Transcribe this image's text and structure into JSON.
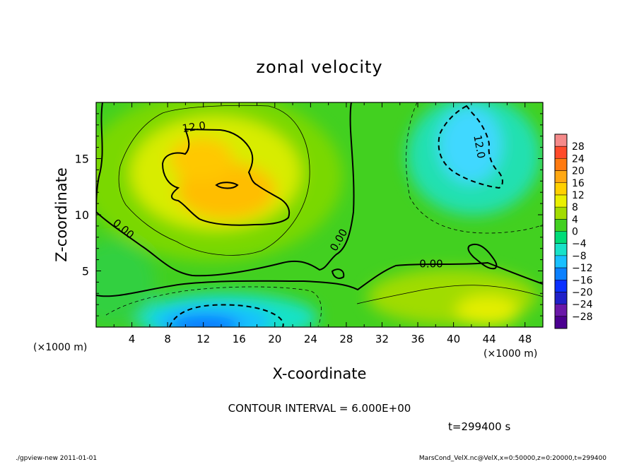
{
  "chart_data": {
    "type": "heatmap",
    "title": "zonal velocity",
    "xlabel": "X-coordinate",
    "ylabel": "Z-coordinate",
    "x_unit_label": "(×1000 m)",
    "y_unit_label": "(×1000 m)",
    "xlim": [
      0,
      50
    ],
    "ylim": [
      0,
      20
    ],
    "x_ticks": [
      4,
      8,
      12,
      16,
      20,
      24,
      28,
      32,
      36,
      40,
      44,
      48
    ],
    "y_ticks": [
      5,
      10,
      15
    ],
    "contour_interval_text": "CONTOUR INTERVAL = 6.000E+00",
    "time_text": "t=299400 s",
    "contour_labels": [
      {
        "text": "12.0",
        "x": 11.0,
        "z": 17.5
      },
      {
        "text": "12.0",
        "x": 42.5,
        "z": 16.0
      },
      {
        "text": "0.00",
        "x": 2.8,
        "z": 8.5
      },
      {
        "text": "0.00",
        "x": 27.5,
        "z": 7.6
      },
      {
        "text": "0.00",
        "x": 37.5,
        "z": 5.3
      }
    ],
    "colorbar": {
      "levels": [
        "28",
        "24",
        "20",
        "16",
        "12",
        "8",
        "4",
        "0",
        "−4",
        "−8",
        "−12",
        "−16",
        "−20",
        "−24",
        "−28"
      ],
      "colors": [
        "#f58a8a",
        "#ff4a2a",
        "#ff7a10",
        "#ffa812",
        "#ffd000",
        "#eaf000",
        "#a2dc00",
        "#42d020",
        "#00dc78",
        "#18e2c8",
        "#18c0ff",
        "#0a80ff",
        "#0a30ff",
        "#2020c8",
        "#6a18a8",
        "#4b0090"
      ]
    },
    "grid": false,
    "legend": "colorbar-right"
  },
  "footer": {
    "left": "./gpview-new   2011-01-01",
    "right": "MarsCond_VelX.nc@VelX,x=0:50000,z=0:20000,t=299400"
  }
}
